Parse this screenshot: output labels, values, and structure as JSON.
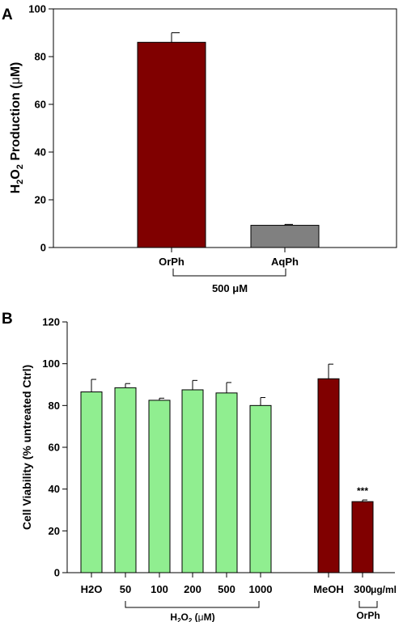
{
  "chart_data": [
    {
      "panel_label": "A",
      "type": "bar",
      "ylabel_parts": [
        "H",
        "2",
        "O",
        "2",
        " Production (",
        "μ",
        "M)"
      ],
      "ylim": [
        0,
        100
      ],
      "yticks": [
        0,
        20,
        40,
        60,
        80,
        100
      ],
      "grid": false,
      "categories": [
        "OrPh",
        "AqPh"
      ],
      "values": [
        86,
        9.3
      ],
      "errors": [
        4,
        0.4
      ],
      "bar_colors": [
        "#800000",
        "#808080"
      ],
      "group_label": "500 μM"
    },
    {
      "panel_label": "B",
      "type": "bar",
      "ylabel": "Cell Viability (% untreated Ctrl)",
      "ylim": [
        0,
        120
      ],
      "yticks": [
        0,
        20,
        40,
        60,
        80,
        100,
        120
      ],
      "grid": false,
      "categories": [
        "H2O",
        "50",
        "100",
        "200",
        "500",
        "1000",
        "MeOH",
        "300"
      ],
      "values": [
        86.5,
        88.5,
        82.5,
        87.5,
        86,
        80,
        92.8,
        34
      ],
      "errors": [
        6,
        2,
        1,
        4.5,
        5,
        3.8,
        7,
        0.8
      ],
      "bar_colors": [
        "#90ee90",
        "#90ee90",
        "#90ee90",
        "#90ee90",
        "#90ee90",
        "#90ee90",
        "#800000",
        "#800000"
      ],
      "annotations": [
        {
          "category": "300",
          "text": "***"
        }
      ],
      "unit_label": "μg/ml",
      "group_labels": [
        {
          "text_parts": [
            "H",
            "2",
            "O",
            "2",
            " (",
            "μ",
            "M)"
          ],
          "from": "50",
          "to": "1000"
        },
        {
          "text": "OrPh",
          "from": "300",
          "to": "300"
        }
      ]
    }
  ]
}
